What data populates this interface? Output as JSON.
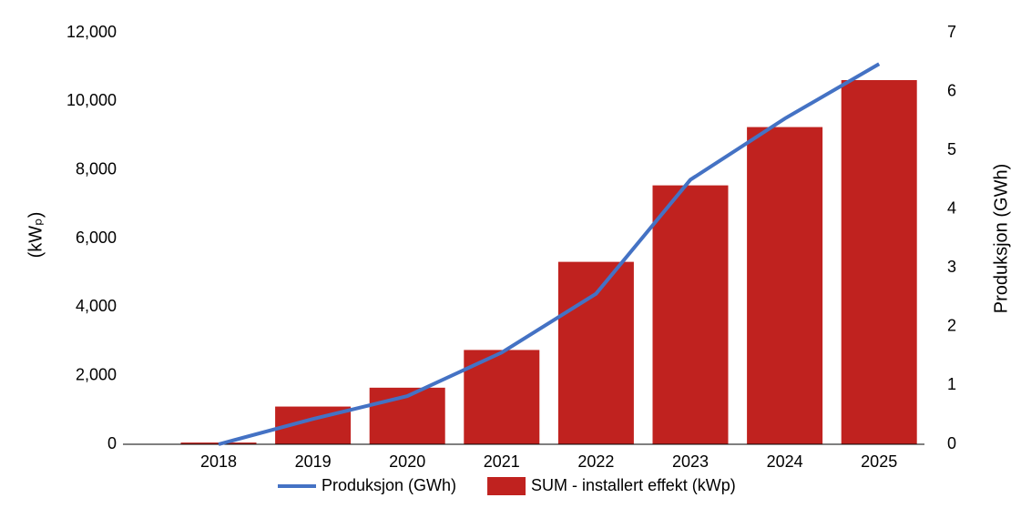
{
  "chart_data": {
    "type": "bar-line",
    "y_label": "(kWₚ)",
    "y2_label": "Produksjon (GWh)",
    "categories": [
      "2018",
      "2019",
      "2020",
      "2021",
      "2022",
      "2023",
      "2024",
      "2025"
    ],
    "series": [
      {
        "name": "Produksjon (GWh)",
        "type": "line",
        "axis": "y2",
        "color": "#4472c4",
        "values": [
          0,
          0.43,
          0.82,
          1.56,
          2.56,
          4.5,
          5.54,
          6.47
        ]
      },
      {
        "name": "SUM - installert effekt (kWp)",
        "type": "bar",
        "color": "#c0221f",
        "values": [
          50,
          1100,
          1650,
          2750,
          5320,
          7550,
          9250,
          10620
        ]
      }
    ],
    "ylim": [
      0,
      12000
    ],
    "yticks": [
      0,
      {
        "value": 2000,
        "label": "2,000"
      },
      {
        "value": 4000,
        "label": "4,000"
      },
      {
        "value": 6000,
        "label": "6,000"
      },
      {
        "value": 8000,
        "label": "8,000"
      },
      {
        "value": 10000,
        "label": "10,000"
      },
      {
        "value": 12000,
        "label": "12,000"
      }
    ],
    "y2lim": [
      0,
      7
    ],
    "y2ticks": [
      0,
      1,
      2,
      3,
      4,
      5,
      6,
      7
    ],
    "legend": "bottom"
  }
}
